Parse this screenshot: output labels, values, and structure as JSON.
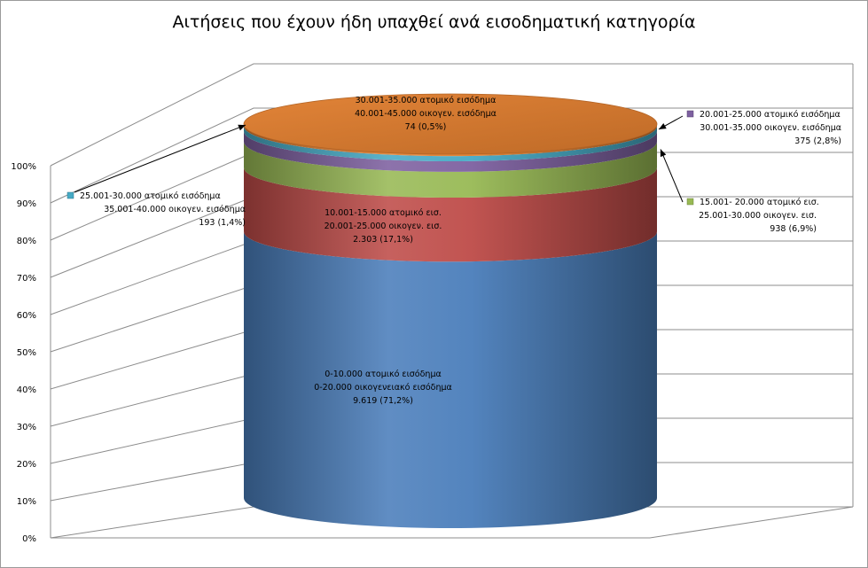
{
  "chart_data": {
    "type": "bar",
    "subtype": "stacked-100-percent-cylinder-3d",
    "title": "Αιτήσεις που έχουν ήδη υπαχθεί ανά εισοδηματική κατηγορία",
    "ylim": [
      0,
      100
    ],
    "y_ticks": [
      "0%",
      "10%",
      "20%",
      "30%",
      "40%",
      "50%",
      "60%",
      "70%",
      "80%",
      "90%",
      "100%"
    ],
    "grid": true,
    "legend": "none",
    "series": [
      {
        "name": "0-10.000 ατομικό εισόδημα / 0-20.000 οικογενειακό εισόδημα",
        "value": 9619,
        "percent": 71.2,
        "color": "#4a7ebb",
        "label_lines": [
          "0-10.000 ατομικό εισόδημα",
          "0-20.000 οικογενειακό εισόδημα",
          "9.619 (71,2%)"
        ]
      },
      {
        "name": "10.001-15.000 ατομικό εισ. / 20.001-25.000 οικογεν. εισ.",
        "value": 2303,
        "percent": 17.1,
        "color": "#be4b48",
        "label_lines": [
          "10.001-15.000 ατομικό εισ.",
          "20.001-25.000 οικογεν. εισ.",
          "2.303 (17,1%)"
        ]
      },
      {
        "name": "15.001- 20.000 ατομικό εισ. / 25.001-30.000 οικογεν. εισ.",
        "value": 938,
        "percent": 6.9,
        "color": "#98b954",
        "label_lines": [
          "15.001- 20.000 ατομικό εισ.",
          "25.001-30.000 οικογεν. εισ.",
          "938 (6,9%)"
        ]
      },
      {
        "name": "20.001-25.000 ατομικό εισόδημα / 30.001-35.000 οικογεν. εισόδημα",
        "value": 375,
        "percent": 2.8,
        "color": "#7d60a0",
        "label_lines": [
          "20.001-25.000 ατομικό εισόδημα",
          "30.001-35.000 οικογεν. εισόδημα",
          "375 (2,8%)"
        ]
      },
      {
        "name": "25.001-30.000 ατομικό εισόδημα / 35.001-40.000 οικογεν. εισόδημα",
        "value": 193,
        "percent": 1.4,
        "color": "#46aac5",
        "label_lines": [
          "25.001-30.000 ατομικό εισόδημα",
          "35.001-40.000 οικογεν. εισόδημα",
          "193 (1,4%)"
        ]
      },
      {
        "name": "30.001-35.000 ατομικό εισόδημα / 40.001-45.000 οικογεν. εισόδημα",
        "value": 74,
        "percent": 0.5,
        "color": "#e07d2e",
        "label_lines": [
          "30.001-35.000 ατομικό εισόδημα",
          "40.001-45.000 οικογεν. εισόδημα",
          "74 (0,5%)"
        ]
      }
    ]
  }
}
